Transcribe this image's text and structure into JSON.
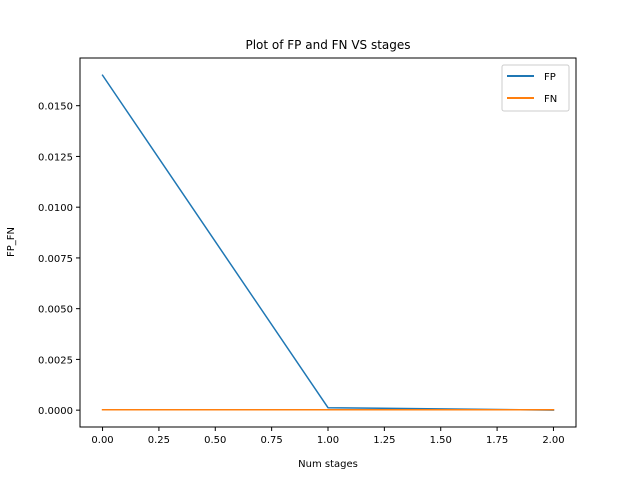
{
  "chart_data": {
    "type": "line",
    "title": "Plot of FP and FN VS stages",
    "xlabel": "Num stages",
    "ylabel": "FP_FN",
    "xlim": [
      -0.1,
      2.1
    ],
    "ylim": [
      -0.00083,
      0.01735
    ],
    "x_ticks": [
      0.0,
      0.25,
      0.5,
      0.75,
      1.0,
      1.25,
      1.5,
      1.75,
      2.0
    ],
    "x_tick_labels": [
      "0.00",
      "0.25",
      "0.50",
      "0.75",
      "1.00",
      "1.25",
      "1.50",
      "1.75",
      "2.00"
    ],
    "y_ticks": [
      0.0,
      0.0025,
      0.005,
      0.0075,
      0.01,
      0.0125,
      0.015
    ],
    "y_tick_labels": [
      "0.0000",
      "0.0025",
      "0.0050",
      "0.0075",
      "0.0100",
      "0.0125",
      "0.0150"
    ],
    "x": [
      0,
      1,
      2
    ],
    "series": [
      {
        "name": "FP",
        "color": "#1f77b4",
        "values": [
          0.0165,
          0.00012,
          0.0
        ]
      },
      {
        "name": "FN",
        "color": "#ff7f0e",
        "values": [
          2e-05,
          2e-05,
          2e-05
        ]
      }
    ],
    "legend_position": "top-right",
    "grid": false
  }
}
